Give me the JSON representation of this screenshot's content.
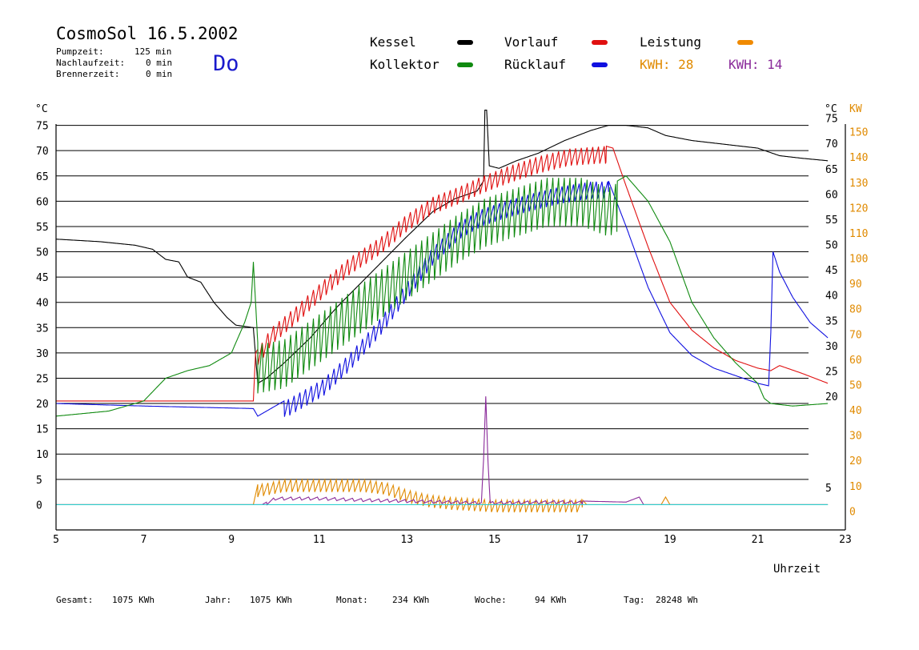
{
  "header": {
    "title": "CosmoSol 16.5.2002",
    "day": "Do",
    "info": [
      {
        "label": "Pumpzeit:",
        "value": "125 min"
      },
      {
        "label": "Nachlaufzeit:",
        "value": "0 min"
      },
      {
        "label": "Brennerzeit:",
        "value": "0 min"
      }
    ]
  },
  "legend": [
    {
      "label": "Kessel",
      "color": "#000000"
    },
    {
      "label": "Vorlauf",
      "color": "#e01010"
    },
    {
      "label": "Leistung",
      "color": "#f08a00"
    },
    {
      "label": "Kollektor",
      "color": "#108a10"
    },
    {
      "label": "Rücklauf",
      "color": "#1010e0"
    }
  ],
  "kwh": [
    {
      "label": "KWH: 28",
      "color": "#e08a00"
    },
    {
      "label": "KWH: 14",
      "color": "#8a2a9a"
    }
  ],
  "footer": [
    {
      "label": "Gesamt:",
      "value": "1075 KWh"
    },
    {
      "label": "Jahr:",
      "value": "1075 KWh"
    },
    {
      "label": "Monat:",
      "value": "234 KWh"
    },
    {
      "label": "Woche:",
      "value": "94 KWh"
    },
    {
      "label": "Tag:",
      "value": "28248 Wh"
    }
  ],
  "chart_data": {
    "type": "line",
    "xlabel": "Uhrzeit",
    "ylabel_left": "°C",
    "ylabel_right_unit1": "°C",
    "ylabel_right_unit2": "KW",
    "xlim": [
      5,
      23
    ],
    "ylim": [
      -5,
      80
    ],
    "x_ticks": [
      "5",
      "7",
      "9",
      "11",
      "13",
      "15",
      "17",
      "19",
      "21",
      "23"
    ],
    "y_ticks": [
      "0",
      "5",
      "10",
      "15",
      "20",
      "25",
      "30",
      "35",
      "40",
      "45",
      "50",
      "55",
      "60",
      "65",
      "70",
      "75"
    ],
    "right_ticks_c": [
      "5",
      "20",
      "25",
      "30",
      "35",
      "40",
      "45",
      "50",
      "55",
      "60",
      "65",
      "70",
      "75"
    ],
    "right_ticks_kw": [
      "0",
      "10",
      "20",
      "30",
      "40",
      "50",
      "60",
      "70",
      "80",
      "90",
      "100",
      "110",
      "120",
      "130",
      "140",
      "150"
    ],
    "grid": true,
    "series": [
      {
        "name": "Kessel",
        "color": "#000000",
        "oscillate": null,
        "points": [
          [
            5,
            52.5
          ],
          [
            6,
            52
          ],
          [
            6.8,
            51.3
          ],
          [
            7.2,
            50.5
          ],
          [
            7.5,
            48.5
          ],
          [
            7.8,
            48
          ],
          [
            8.0,
            45
          ],
          [
            8.3,
            44
          ],
          [
            8.6,
            40
          ],
          [
            8.9,
            37
          ],
          [
            9.1,
            35.5
          ],
          [
            9.5,
            35
          ],
          [
            9.6,
            24
          ],
          [
            9.8,
            25
          ],
          [
            10.2,
            28
          ],
          [
            10.8,
            33
          ],
          [
            11.4,
            39
          ],
          [
            12.2,
            46
          ],
          [
            13.0,
            53
          ],
          [
            13.6,
            58
          ],
          [
            14.1,
            60.5
          ],
          [
            14.6,
            62
          ],
          [
            14.75,
            64
          ],
          [
            14.78,
            78
          ],
          [
            14.82,
            78
          ],
          [
            14.88,
            67
          ],
          [
            15.1,
            66.5
          ],
          [
            15.5,
            68
          ],
          [
            16.0,
            69.5
          ],
          [
            16.6,
            72
          ],
          [
            17.2,
            74
          ],
          [
            17.6,
            75
          ],
          [
            18.0,
            75
          ],
          [
            18.5,
            74.5
          ],
          [
            18.9,
            73
          ],
          [
            19.5,
            72
          ],
          [
            20.0,
            71.5
          ],
          [
            20.5,
            71
          ],
          [
            21.0,
            70.5
          ],
          [
            21.5,
            69
          ],
          [
            22.0,
            68.5
          ],
          [
            22.6,
            68
          ]
        ]
      },
      {
        "name": "Vorlauf",
        "color": "#e01010",
        "oscillate": {
          "from": 9.6,
          "to": 17.55,
          "period": 0.13,
          "amp": 3.5
        },
        "points": [
          [
            5,
            20.5
          ],
          [
            7,
            20.5
          ],
          [
            9.5,
            20.5
          ],
          [
            9.55,
            30
          ],
          [
            9.9,
            35
          ],
          [
            10.5,
            39.5
          ],
          [
            11.1,
            44.5
          ],
          [
            11.7,
            49
          ],
          [
            12.4,
            53
          ],
          [
            13.0,
            57.5
          ],
          [
            13.6,
            61
          ],
          [
            14.2,
            63
          ],
          [
            14.7,
            65
          ],
          [
            15.3,
            67
          ],
          [
            16.0,
            69
          ],
          [
            16.7,
            70.5
          ],
          [
            17.5,
            71
          ],
          [
            17.7,
            70.5
          ],
          [
            18.0,
            63
          ],
          [
            18.5,
            51
          ],
          [
            19.0,
            40
          ],
          [
            19.5,
            34.5
          ],
          [
            20.0,
            31
          ],
          [
            20.5,
            28.5
          ],
          [
            21.0,
            27
          ],
          [
            21.3,
            26.5
          ],
          [
            21.5,
            27.5
          ],
          [
            22.0,
            26
          ],
          [
            22.6,
            24
          ]
        ]
      },
      {
        "name": "Rücklauf",
        "color": "#1010e0",
        "oscillate": {
          "from": 10.2,
          "to": 17.6,
          "period": 0.13,
          "amp": 3.5
        },
        "points": [
          [
            5,
            20
          ],
          [
            7,
            19.5
          ],
          [
            9.5,
            19
          ],
          [
            9.6,
            17.5
          ],
          [
            10.0,
            19.5
          ],
          [
            10.5,
            22
          ],
          [
            11.1,
            25
          ],
          [
            11.7,
            30
          ],
          [
            12.4,
            37
          ],
          [
            13.0,
            44
          ],
          [
            13.6,
            51
          ],
          [
            14.2,
            56
          ],
          [
            14.7,
            58.5
          ],
          [
            15.2,
            60
          ],
          [
            15.8,
            61.5
          ],
          [
            16.5,
            63
          ],
          [
            17.2,
            64
          ],
          [
            17.6,
            64
          ],
          [
            18.0,
            55
          ],
          [
            18.5,
            43
          ],
          [
            19.0,
            34
          ],
          [
            19.5,
            29.5
          ],
          [
            20.0,
            27
          ],
          [
            20.5,
            25.5
          ],
          [
            21.0,
            24
          ],
          [
            21.25,
            23.5
          ],
          [
            21.3,
            34
          ],
          [
            21.35,
            50
          ],
          [
            21.5,
            46
          ],
          [
            21.8,
            41
          ],
          [
            22.2,
            36
          ],
          [
            22.6,
            33
          ]
        ]
      },
      {
        "name": "Kollektor",
        "color": "#108a10",
        "oscillate": {
          "from": 9.6,
          "to": 17.8,
          "period": 0.13,
          "amp": 10
        },
        "points": [
          [
            5,
            17.5
          ],
          [
            6.2,
            18.5
          ],
          [
            7,
            20.5
          ],
          [
            7.5,
            25
          ],
          [
            8.0,
            26.5
          ],
          [
            8.5,
            27.5
          ],
          [
            9.0,
            30
          ],
          [
            9.3,
            36
          ],
          [
            9.45,
            40
          ],
          [
            9.5,
            48
          ],
          [
            9.6,
            32
          ],
          [
            10.2,
            33
          ],
          [
            11.0,
            38
          ],
          [
            11.8,
            43
          ],
          [
            12.6,
            48
          ],
          [
            13.4,
            53
          ],
          [
            14.2,
            58
          ],
          [
            14.8,
            61
          ],
          [
            15.5,
            63
          ],
          [
            16.2,
            65
          ],
          [
            17.0,
            65
          ],
          [
            17.6,
            63
          ],
          [
            18.0,
            65
          ],
          [
            18.5,
            60
          ],
          [
            19.0,
            52
          ],
          [
            19.5,
            40
          ],
          [
            20.0,
            33
          ],
          [
            20.5,
            28
          ],
          [
            21.0,
            24
          ],
          [
            21.15,
            21
          ],
          [
            21.3,
            20
          ],
          [
            21.8,
            19.5
          ],
          [
            22.6,
            20
          ]
        ]
      },
      {
        "name": "Leistung",
        "color": "#e08a00",
        "oscillate": {
          "from": 9.6,
          "to": 17.0,
          "period": 0.13,
          "amp": 2.5
        },
        "points": [
          [
            5,
            0
          ],
          [
            9.5,
            0
          ],
          [
            9.6,
            4
          ],
          [
            10.2,
            5
          ],
          [
            11.0,
            5
          ],
          [
            12.0,
            5
          ],
          [
            12.5,
            4.5
          ],
          [
            13.0,
            3
          ],
          [
            13.5,
            2
          ],
          [
            14.0,
            1.5
          ],
          [
            15.0,
            1
          ],
          [
            16.0,
            1
          ],
          [
            17.0,
            1
          ],
          [
            17.1,
            0
          ],
          [
            18.8,
            0
          ],
          [
            18.9,
            1.5
          ],
          [
            19.0,
            0
          ],
          [
            22.6,
            0
          ]
        ]
      },
      {
        "name": "Violett",
        "color": "#8a2a9a",
        "oscillate": {
          "from": 9.8,
          "to": 17.0,
          "period": 0.2,
          "amp": 0.6
        },
        "points": [
          [
            5,
            0
          ],
          [
            9.7,
            0
          ],
          [
            10.0,
            1.5
          ],
          [
            11.0,
            1.5
          ],
          [
            12.0,
            1.2
          ],
          [
            13.0,
            1
          ],
          [
            14.0,
            0.8
          ],
          [
            14.7,
            0.6
          ],
          [
            14.75,
            9
          ],
          [
            14.8,
            22
          ],
          [
            14.85,
            9
          ],
          [
            14.9,
            0.6
          ],
          [
            15.5,
            0.7
          ],
          [
            16.5,
            0.8
          ],
          [
            17.0,
            0.7
          ],
          [
            18.0,
            0.5
          ],
          [
            18.3,
            1.5
          ],
          [
            18.4,
            0
          ],
          [
            22.6,
            0
          ]
        ]
      },
      {
        "name": "Basis",
        "color": "#30d0d0",
        "oscillate": null,
        "points": [
          [
            5,
            0
          ],
          [
            22.6,
            0
          ]
        ]
      }
    ]
  }
}
